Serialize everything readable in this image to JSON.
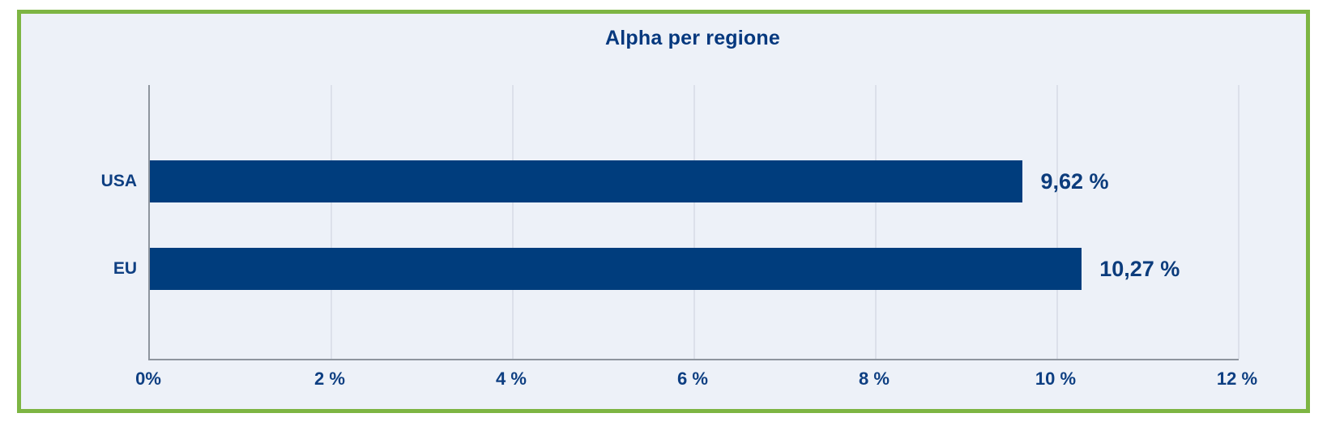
{
  "chart_data": {
    "type": "bar",
    "orientation": "horizontal",
    "title": "Alpha per regione",
    "categories": [
      "USA",
      "EU"
    ],
    "values": [
      9.62,
      10.27
    ],
    "value_labels": [
      "9,62 %",
      "10,27 %"
    ],
    "xlabel": "",
    "ylabel": "",
    "xlim": [
      0,
      12
    ],
    "x_tick_labels": [
      "0%",
      "2 %",
      "4 %",
      "6 %",
      "8 %",
      "10 %",
      "12 %"
    ],
    "grid": "vertical",
    "legend": "none",
    "colors": {
      "bar": "#003d7d",
      "title_text": "#05387e",
      "label_text": "#0e3f82",
      "panel_background": "#edf1f8",
      "panel_border": "#7db543",
      "axis_line": "#8e959e",
      "gridline": "#dce0ea"
    }
  }
}
